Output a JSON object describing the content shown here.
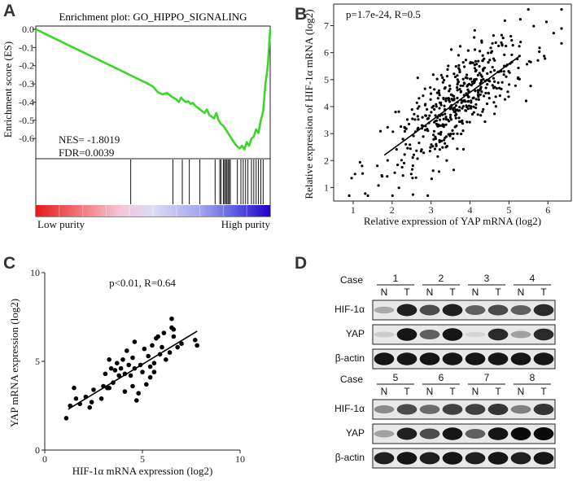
{
  "panels": {
    "a": {
      "label": "A"
    },
    "b": {
      "label": "B"
    },
    "c": {
      "label": "C"
    },
    "d": {
      "label": "D"
    }
  },
  "chart_data": [
    {
      "id": "A",
      "type": "line",
      "title": "Enrichment plot: GO_HIPPO_SIGNALING",
      "ylabel": "Enrichment score (ES)",
      "ylim": [
        -0.68,
        0.0
      ],
      "yticks": [
        "0.0",
        "-0.1",
        "-0.2",
        "-0.3",
        "-0.4",
        "-0.5",
        "-0.6"
      ],
      "ytick_values": [
        0.0,
        -0.1,
        -0.2,
        -0.3,
        -0.4,
        -0.5,
        -0.6
      ],
      "x": [
        0,
        0.04,
        0.08,
        0.12,
        0.16,
        0.2,
        0.24,
        0.28,
        0.32,
        0.36,
        0.4,
        0.44,
        0.48,
        0.5,
        0.52,
        0.54,
        0.56,
        0.58,
        0.6,
        0.61,
        0.62,
        0.63,
        0.64,
        0.65,
        0.66,
        0.67,
        0.68,
        0.69,
        0.7,
        0.71,
        0.72,
        0.73,
        0.74,
        0.75,
        0.76,
        0.77,
        0.78,
        0.79,
        0.8,
        0.81,
        0.82,
        0.83,
        0.84,
        0.85,
        0.86,
        0.87,
        0.88,
        0.89,
        0.9,
        0.91,
        0.92,
        0.93,
        0.94,
        0.95,
        0.96,
        0.97,
        0.98,
        0.99,
        1.0
      ],
      "y": [
        0.0,
        -0.025,
        -0.05,
        -0.075,
        -0.1,
        -0.125,
        -0.15,
        -0.175,
        -0.2,
        -0.225,
        -0.25,
        -0.275,
        -0.3,
        -0.315,
        -0.345,
        -0.358,
        -0.35,
        -0.37,
        -0.385,
        -0.4,
        -0.375,
        -0.39,
        -0.4,
        -0.395,
        -0.41,
        -0.405,
        -0.42,
        -0.43,
        -0.44,
        -0.45,
        -0.46,
        -0.44,
        -0.47,
        -0.48,
        -0.49,
        -0.46,
        -0.5,
        -0.52,
        -0.53,
        -0.55,
        -0.57,
        -0.59,
        -0.61,
        -0.63,
        -0.645,
        -0.655,
        -0.64,
        -0.66,
        -0.62,
        -0.64,
        -0.6,
        -0.59,
        -0.55,
        -0.57,
        -0.5,
        -0.45,
        -0.3,
        -0.2,
        0.0
      ],
      "annotations": {
        "nes": "NES= -1.8019",
        "fdr": "FDR=0.0039"
      },
      "hit_positions": [
        0.405,
        0.585,
        0.625,
        0.655,
        0.7,
        0.765,
        0.785,
        0.79,
        0.8,
        0.805,
        0.81,
        0.815,
        0.82,
        0.825,
        0.83,
        0.86,
        0.875,
        0.885,
        0.895,
        0.905,
        0.92,
        0.93,
        0.94,
        0.95,
        0.96,
        0.97
      ],
      "legend": {
        "low": "Low purity",
        "high": "High purity"
      },
      "colors": {
        "line": "#3bd629"
      }
    },
    {
      "id": "B",
      "type": "scatter",
      "title": "",
      "xlabel": "Relative expression of YAP mRNA (log2)",
      "ylabel": "Relative expression of HIF-1α mRNA (log2)",
      "xlim": [
        0.5,
        6.6
      ],
      "ylim": [
        0.5,
        7.8
      ],
      "xticks": [
        "1",
        "2",
        "3",
        "4",
        "5",
        "6"
      ],
      "yticks": [
        "1",
        "2",
        "3",
        "4",
        "5",
        "6",
        "7"
      ],
      "stat_label": "p=1.7e-24, R=0.5",
      "fit": {
        "x": [
          1.8,
          5.3
        ],
        "y": [
          2.2,
          5.9
        ]
      },
      "n_points": 480,
      "seed": 71,
      "color": "#000000"
    },
    {
      "id": "C",
      "type": "scatter",
      "title": "",
      "xlabel": "HIF-1α mRNA expression (log2)",
      "ylabel": "YAP mRNA expression (log2)",
      "xlim": [
        0,
        10
      ],
      "ylim": [
        0,
        10
      ],
      "xticks": [
        "0",
        "5",
        "10"
      ],
      "yticks": [
        "0",
        "5",
        "10"
      ],
      "stat_label": "p<0.01, R=0.64",
      "fit": {
        "x": [
          1.2,
          7.8
        ],
        "y": [
          2.3,
          6.7
        ]
      },
      "points": [
        [
          1.1,
          1.8
        ],
        [
          1.3,
          2.5
        ],
        [
          1.5,
          3.5
        ],
        [
          1.6,
          2.9
        ],
        [
          1.8,
          2.6
        ],
        [
          2.1,
          3.0
        ],
        [
          2.3,
          2.4
        ],
        [
          2.4,
          2.7
        ],
        [
          2.5,
          3.4
        ],
        [
          2.9,
          2.9
        ],
        [
          3.0,
          3.6
        ],
        [
          3.1,
          4.3
        ],
        [
          3.2,
          3.5
        ],
        [
          3.3,
          3.5
        ],
        [
          3.4,
          4.6
        ],
        [
          3.5,
          3.8
        ],
        [
          3.6,
          4.5
        ],
        [
          3.7,
          4.9
        ],
        [
          3.8,
          4.2
        ],
        [
          3.9,
          4.6
        ],
        [
          4.0,
          5.1
        ],
        [
          4.1,
          4.3
        ],
        [
          4.1,
          3.3
        ],
        [
          4.2,
          5.6
        ],
        [
          4.3,
          4.8
        ],
        [
          4.4,
          4.2
        ],
        [
          4.5,
          5.2
        ],
        [
          4.5,
          3.6
        ],
        [
          4.6,
          4.6
        ],
        [
          4.7,
          2.8
        ],
        [
          4.8,
          3.2
        ],
        [
          4.9,
          4.8
        ],
        [
          5.0,
          4.4
        ],
        [
          5.1,
          5.7
        ],
        [
          5.2,
          3.7
        ],
        [
          5.3,
          5.3
        ],
        [
          5.4,
          4.7
        ],
        [
          5.4,
          4.1
        ],
        [
          5.5,
          5.9
        ],
        [
          5.6,
          4.4
        ],
        [
          5.7,
          6.3
        ],
        [
          5.8,
          6.4
        ],
        [
          5.9,
          5.4
        ],
        [
          6.0,
          5.8
        ],
        [
          6.1,
          6.6
        ],
        [
          6.2,
          5.1
        ],
        [
          6.4,
          5.5
        ],
        [
          6.5,
          7.4
        ],
        [
          6.5,
          6.9
        ],
        [
          6.6,
          6.8
        ],
        [
          6.6,
          6.4
        ],
        [
          6.8,
          5.8
        ],
        [
          7.0,
          6.0
        ],
        [
          7.7,
          6.2
        ],
        [
          7.8,
          5.9
        ],
        [
          5.6,
          4.9
        ],
        [
          3.3,
          5.1
        ],
        [
          4.6,
          6.1
        ]
      ],
      "color": "#000000"
    }
  ],
  "blot": {
    "set1": {
      "case_label": "Case",
      "cases": [
        "1",
        "2",
        "3",
        "4"
      ],
      "nt": [
        "N",
        "T"
      ],
      "rows": [
        {
          "name": "HIF-1α",
          "intensity": [
            0.25,
            0.9,
            0.7,
            0.9,
            0.6,
            0.7,
            0.6,
            0.85
          ]
        },
        {
          "name": "YAP",
          "intensity": [
            0.1,
            0.95,
            0.6,
            0.95,
            0.05,
            0.85,
            0.3,
            0.85
          ]
        },
        {
          "name": "β-actin",
          "intensity": [
            0.95,
            0.95,
            0.95,
            0.95,
            0.95,
            0.95,
            0.95,
            0.95
          ]
        }
      ]
    },
    "set2": {
      "case_label": "Case",
      "cases": [
        "5",
        "6",
        "7",
        "8"
      ],
      "nt": [
        "N",
        "T"
      ],
      "rows": [
        {
          "name": "HIF-1α",
          "intensity": [
            0.4,
            0.7,
            0.55,
            0.75,
            0.75,
            0.8,
            0.45,
            0.8
          ]
        },
        {
          "name": "YAP",
          "intensity": [
            0.3,
            0.9,
            0.7,
            0.95,
            0.6,
            0.95,
            1.0,
            1.0
          ]
        },
        {
          "name": "β-actin",
          "intensity": [
            0.9,
            0.95,
            0.9,
            0.95,
            0.9,
            0.95,
            0.9,
            0.95
          ]
        }
      ]
    }
  }
}
